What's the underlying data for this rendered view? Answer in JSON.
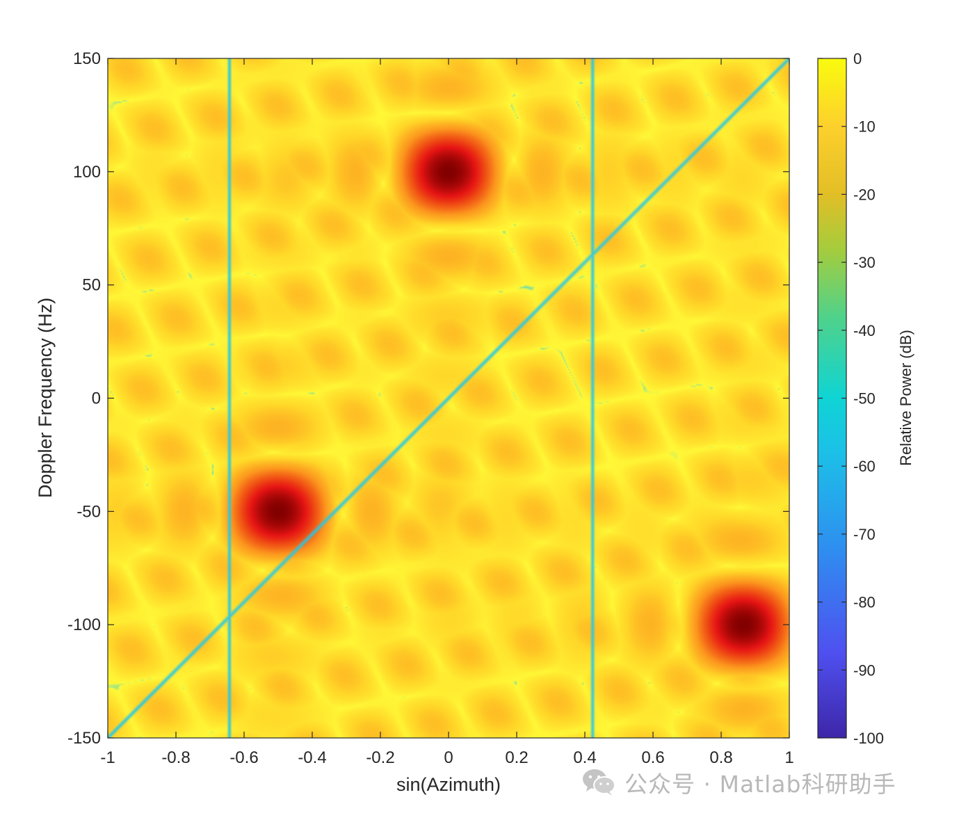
{
  "chart_data": {
    "type": "heatmap",
    "title": "",
    "xlabel": "sin(Azimuth)",
    "ylabel": "Doppler Frequency (Hz)",
    "xlim": [
      -1,
      1
    ],
    "ylim": [
      -150,
      150
    ],
    "x_ticks": [
      -1,
      -0.8,
      -0.6,
      -0.4,
      -0.2,
      0,
      0.2,
      0.4,
      0.6,
      0.8,
      1
    ],
    "x_tick_labels": [
      "-1",
      "-0.8",
      "-0.6",
      "-0.4",
      "-0.2",
      "0",
      "0.2",
      "0.4",
      "0.6",
      "0.8",
      "1"
    ],
    "y_ticks": [
      150,
      100,
      50,
      0,
      -50,
      -100,
      -150
    ],
    "y_tick_labels": [
      "150",
      "100",
      "50",
      "0",
      "-50",
      "-100",
      "-150"
    ],
    "colorbar": {
      "label": "Relative Power (dB)",
      "range": [
        -100,
        0
      ],
      "ticks": [
        0,
        -10,
        -20,
        -30,
        -40,
        -50,
        -60,
        -70,
        -80,
        -90,
        -100
      ],
      "tick_labels": [
        "0",
        "-10",
        "-20",
        "-30",
        "-40",
        "-50",
        "-60",
        "-70",
        "-80",
        "-90",
        "-100"
      ],
      "colormap": "jet"
    },
    "peaks": [
      {
        "sin_azimuth": 0.0,
        "doppler_hz": 100,
        "power_db": 0
      },
      {
        "sin_azimuth": -0.5,
        "doppler_hz": -50,
        "power_db": 0
      },
      {
        "sin_azimuth": 0.866,
        "doppler_hz": -100,
        "power_db": 0
      }
    ],
    "clutter_ridge": {
      "from": [
        -1,
        -150
      ],
      "to": [
        1,
        150
      ],
      "power_db": -60
    },
    "null_columns_sin_azimuth": [
      -0.643,
      0.423
    ],
    "grid": false
  },
  "watermark": {
    "text": "公众号 · Matlab科研助手",
    "icon": "wechat-icon",
    "color": "#b8b8b8"
  }
}
